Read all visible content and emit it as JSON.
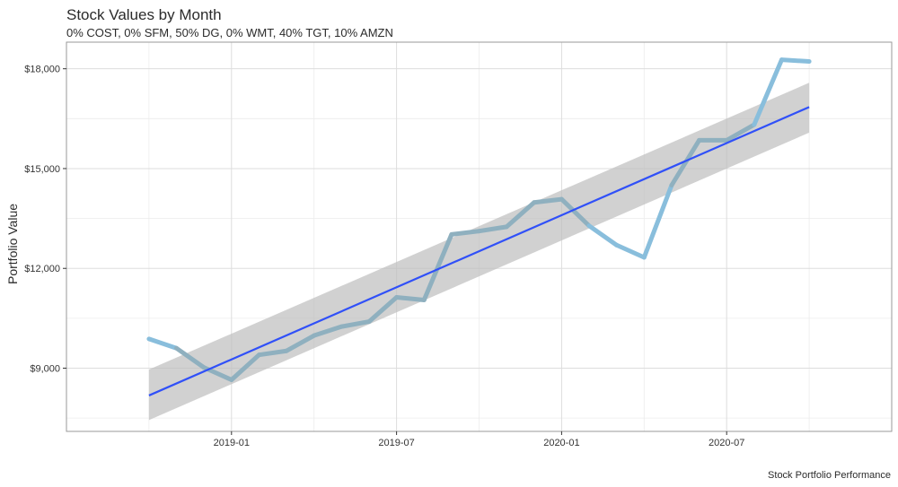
{
  "chart_data": {
    "type": "line",
    "title": "Stock Values by Month",
    "subtitle": "0% COST, 0% SFM, 50% DG, 0% WMT, 40% TGT, 10% AMZN",
    "xlabel": "",
    "ylabel": "Portfolio Value",
    "caption": "Stock Portfolio Performance",
    "x_tick_labels": [
      "2019-01",
      "2019-07",
      "2020-01",
      "2020-07"
    ],
    "y_tick_labels": [
      "$9,000",
      "$12,000",
      "$15,000",
      "$18,000"
    ],
    "y_ticks": [
      9000,
      12000,
      15000,
      18000
    ],
    "ylim": [
      7100,
      18800
    ],
    "grid": true,
    "series": [
      {
        "values": [
          {
            "x": "2018-10",
            "y": 9880
          },
          {
            "x": "2018-11",
            "y": 9600
          },
          {
            "x": "2018-12",
            "y": 9020
          },
          {
            "x": "2019-01",
            "y": 8650
          },
          {
            "x": "2019-02",
            "y": 9400
          },
          {
            "x": "2019-03",
            "y": 9520
          },
          {
            "x": "2019-04",
            "y": 9980
          },
          {
            "x": "2019-05",
            "y": 10250
          },
          {
            "x": "2019-06",
            "y": 10400
          },
          {
            "x": "2019-07",
            "y": 11130
          },
          {
            "x": "2019-08",
            "y": 11050
          },
          {
            "x": "2019-09",
            "y": 13020
          },
          {
            "x": "2019-10",
            "y": 13120
          },
          {
            "x": "2019-11",
            "y": 13250
          },
          {
            "x": "2019-12",
            "y": 13980
          },
          {
            "x": "2020-01",
            "y": 14080
          },
          {
            "x": "2020-02",
            "y": 13280
          },
          {
            "x": "2020-03",
            "y": 12700
          },
          {
            "x": "2020-04",
            "y": 12330
          },
          {
            "x": "2020-05",
            "y": 14500
          },
          {
            "x": "2020-06",
            "y": 15850
          },
          {
            "x": "2020-07",
            "y": 15850
          },
          {
            "x": "2020-08",
            "y": 16320
          },
          {
            "x": "2020-09",
            "y": 18270
          },
          {
            "x": "2020-10",
            "y": 18220
          }
        ]
      }
    ],
    "trend": {
      "type": "linear",
      "start": {
        "x": "2018-10",
        "y": 8180
      },
      "end": {
        "x": "2020-10",
        "y": 16850
      },
      "band_start": [
        7440,
        8960
      ],
      "band_end": [
        16080,
        17580
      ]
    },
    "colors": {
      "line": "#89bedc",
      "trend": "#3050f8",
      "band": "#bdbdbd",
      "grid": "#dddddd",
      "border": "#999999"
    }
  }
}
